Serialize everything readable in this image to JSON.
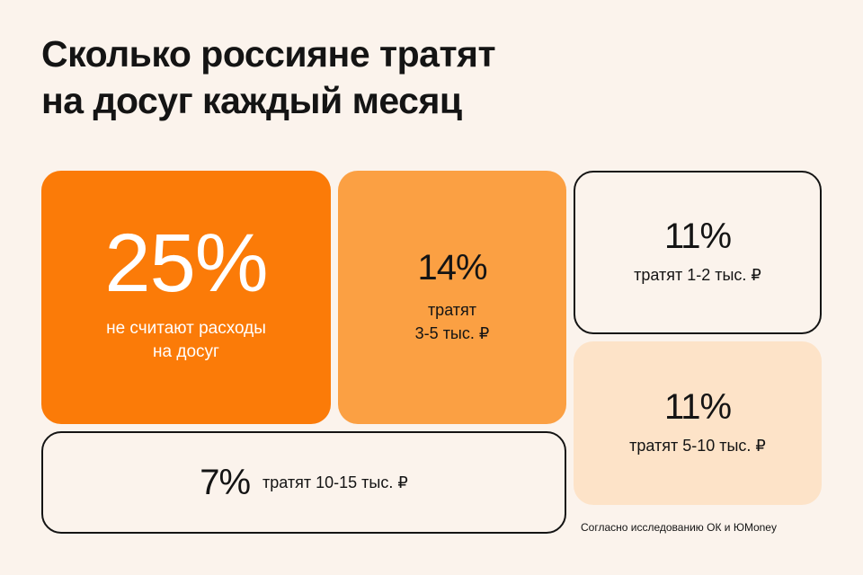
{
  "title": {
    "line1": "Сколько россияне тратят",
    "line2": "на досуг каждый месяц"
  },
  "chart_data": {
    "type": "table",
    "title": "Сколько россияне тратят на досуг каждый месяц",
    "unit": "%",
    "items": [
      {
        "value": 25,
        "label_text": "25%",
        "desc_line1": "не считают расходы",
        "desc_line2": "на досуг",
        "color": "#fb7b08"
      },
      {
        "value": 14,
        "label_text": "14%",
        "desc_line1": "тратят",
        "desc_line2": "3-5 тыс. ₽",
        "color": "#fba043"
      },
      {
        "value": 11,
        "label_text": "11%",
        "desc_line1": "тратят 1-2 тыс. ₽",
        "desc_line2": "",
        "color": "#fbf3ec"
      },
      {
        "value": 11,
        "label_text": "11%",
        "desc_line1": "тратят 5-10 тыс. ₽",
        "desc_line2": "",
        "color": "#fde3c8"
      },
      {
        "value": 7,
        "label_text": "7%",
        "desc_line1": "тратят 10-15 тыс. ₽",
        "desc_line2": "",
        "color": "#fbf3ec"
      }
    ]
  },
  "source": "Согласно исследованию ОК и ЮMoney"
}
